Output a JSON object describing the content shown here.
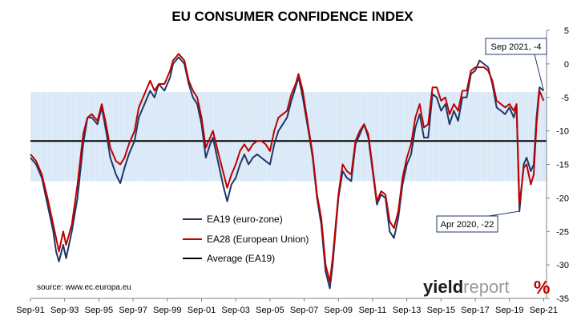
{
  "chart_data": {
    "type": "line",
    "title": "EU CONSUMER CONFIDENCE INDEX",
    "xlabel": "",
    "ylabel": "",
    "ylim": [
      -35,
      5
    ],
    "x_range": [
      "1991-09",
      "2021-11"
    ],
    "y_ticks": [
      5,
      0,
      -5,
      -10,
      -15,
      -20,
      -25,
      -30,
      -35
    ],
    "x_ticks": [
      "Sep-91",
      "Sep-93",
      "Sep-95",
      "Sep-97",
      "Sep-99",
      "Sep-01",
      "Sep-03",
      "Sep-05",
      "Sep-07",
      "Sep-09",
      "Sep-11",
      "Sep-13",
      "Sep-15",
      "Sep-17",
      "Sep-19",
      "Sep-21"
    ],
    "band": {
      "from": -17.5,
      "to": -4.2,
      "color": "#c8def2"
    },
    "average": {
      "name": "Average (EA19)",
      "value": -11.5,
      "color": "#000000"
    },
    "legend_position": "bottom-center",
    "grid": false,
    "series": [
      {
        "name": "EA19 (euro-zone)",
        "color": "#1f3864",
        "points": [
          [
            "1991-09",
            -14
          ],
          [
            "1992-01",
            -15
          ],
          [
            "1992-05",
            -17
          ],
          [
            "1992-09",
            -21
          ],
          [
            "1993-01",
            -25
          ],
          [
            "1993-03",
            -28
          ],
          [
            "1993-05",
            -29.5
          ],
          [
            "1993-08",
            -27
          ],
          [
            "1993-10",
            -29
          ],
          [
            "1994-02",
            -25
          ],
          [
            "1994-06",
            -20
          ],
          [
            "1994-10",
            -12
          ],
          [
            "1995-01",
            -8
          ],
          [
            "1995-04",
            -8
          ],
          [
            "1995-08",
            -9
          ],
          [
            "1995-11",
            -6.5
          ],
          [
            "1996-02",
            -10
          ],
          [
            "1996-05",
            -14
          ],
          [
            "1996-09",
            -16.5
          ],
          [
            "1996-12",
            -17.8
          ],
          [
            "1997-03",
            -15.5
          ],
          [
            "1997-06",
            -13.5
          ],
          [
            "1997-10",
            -11.5
          ],
          [
            "1998-01",
            -8
          ],
          [
            "1998-05",
            -6
          ],
          [
            "1998-09",
            -4
          ],
          [
            "1998-12",
            -5
          ],
          [
            "1999-03",
            -3
          ],
          [
            "1999-07",
            -4
          ],
          [
            "1999-11",
            -2
          ],
          [
            "2000-01",
            0
          ],
          [
            "2000-05",
            1
          ],
          [
            "2000-09",
            0
          ],
          [
            "2000-12",
            -3
          ],
          [
            "2001-03",
            -5
          ],
          [
            "2001-06",
            -6
          ],
          [
            "2001-09",
            -9
          ],
          [
            "2001-12",
            -14
          ],
          [
            "2002-03",
            -12
          ],
          [
            "2002-05",
            -11
          ],
          [
            "2002-09",
            -15
          ],
          [
            "2002-12",
            -18
          ],
          [
            "2003-03",
            -20.5
          ],
          [
            "2003-06",
            -18
          ],
          [
            "2003-09",
            -17
          ],
          [
            "2003-12",
            -15
          ],
          [
            "2004-03",
            -13.5
          ],
          [
            "2004-06",
            -15
          ],
          [
            "2004-09",
            -14
          ],
          [
            "2004-12",
            -13.5
          ],
          [
            "2005-03",
            -14
          ],
          [
            "2005-06",
            -14.5
          ],
          [
            "2005-09",
            -15
          ],
          [
            "2005-12",
            -12
          ],
          [
            "2006-03",
            -10
          ],
          [
            "2006-06",
            -9
          ],
          [
            "2006-09",
            -8
          ],
          [
            "2006-12",
            -5.5
          ],
          [
            "2007-03",
            -3.5
          ],
          [
            "2007-05",
            -2
          ],
          [
            "2007-08",
            -5
          ],
          [
            "2007-12",
            -10
          ],
          [
            "2008-03",
            -14
          ],
          [
            "2008-06",
            -20
          ],
          [
            "2008-09",
            -24
          ],
          [
            "2008-12",
            -31
          ],
          [
            "2009-03",
            -33.5
          ],
          [
            "2009-05",
            -30
          ],
          [
            "2009-09",
            -20
          ],
          [
            "2009-12",
            -16
          ],
          [
            "2010-03",
            -17
          ],
          [
            "2010-06",
            -17.5
          ],
          [
            "2010-09",
            -12
          ],
          [
            "2010-12",
            -10.5
          ],
          [
            "2011-03",
            -9
          ],
          [
            "2011-06",
            -11
          ],
          [
            "2011-09",
            -16
          ],
          [
            "2011-12",
            -21
          ],
          [
            "2012-03",
            -19.5
          ],
          [
            "2012-06",
            -20
          ],
          [
            "2012-09",
            -25
          ],
          [
            "2012-12",
            -26
          ],
          [
            "2013-03",
            -23
          ],
          [
            "2013-06",
            -18
          ],
          [
            "2013-09",
            -15
          ],
          [
            "2013-12",
            -13.5
          ],
          [
            "2014-03",
            -9.5
          ],
          [
            "2014-06",
            -7.5
          ],
          [
            "2014-09",
            -11
          ],
          [
            "2014-12",
            -11
          ],
          [
            "2015-03",
            -4.5
          ],
          [
            "2015-06",
            -5
          ],
          [
            "2015-09",
            -7
          ],
          [
            "2015-12",
            -6
          ],
          [
            "2016-03",
            -9
          ],
          [
            "2016-06",
            -7
          ],
          [
            "2016-09",
            -8.5
          ],
          [
            "2016-12",
            -5
          ],
          [
            "2017-03",
            -5
          ],
          [
            "2017-06",
            -1.5
          ],
          [
            "2017-09",
            -1
          ],
          [
            "2017-12",
            0.5
          ],
          [
            "2018-03",
            0
          ],
          [
            "2018-06",
            -0.5
          ],
          [
            "2018-09",
            -3
          ],
          [
            "2018-12",
            -6.5
          ],
          [
            "2019-03",
            -7
          ],
          [
            "2019-06",
            -7.5
          ],
          [
            "2019-09",
            -6.5
          ],
          [
            "2019-12",
            -8
          ],
          [
            "2020-02",
            -6.5
          ],
          [
            "2020-04",
            -22
          ],
          [
            "2020-07",
            -15
          ],
          [
            "2020-09",
            -14
          ],
          [
            "2020-12",
            -16
          ],
          [
            "2021-02",
            -15
          ],
          [
            "2021-04",
            -8
          ],
          [
            "2021-06",
            -3.5
          ],
          [
            "2021-09",
            -4
          ]
        ]
      },
      {
        "name": "EA28 (European Union)",
        "color": "#c00000",
        "points": [
          [
            "1991-09",
            -13.5
          ],
          [
            "1992-01",
            -14.5
          ],
          [
            "1992-05",
            -16.5
          ],
          [
            "1992-09",
            -20
          ],
          [
            "1993-01",
            -24
          ],
          [
            "1993-03",
            -26
          ],
          [
            "1993-05",
            -28
          ],
          [
            "1993-08",
            -25
          ],
          [
            "1993-10",
            -27
          ],
          [
            "1994-02",
            -24
          ],
          [
            "1994-06",
            -18
          ],
          [
            "1994-10",
            -10.5
          ],
          [
            "1995-01",
            -8
          ],
          [
            "1995-04",
            -7.5
          ],
          [
            "1995-08",
            -8.5
          ],
          [
            "1995-11",
            -6
          ],
          [
            "1996-02",
            -9
          ],
          [
            "1996-05",
            -12.5
          ],
          [
            "1996-09",
            -14.5
          ],
          [
            "1996-12",
            -15
          ],
          [
            "1997-03",
            -14
          ],
          [
            "1997-06",
            -12
          ],
          [
            "1997-10",
            -10
          ],
          [
            "1998-01",
            -6.5
          ],
          [
            "1998-05",
            -4.5
          ],
          [
            "1998-09",
            -2.5
          ],
          [
            "1998-12",
            -4
          ],
          [
            "1999-03",
            -3
          ],
          [
            "1999-07",
            -3
          ],
          [
            "1999-11",
            -1
          ],
          [
            "2000-01",
            0.5
          ],
          [
            "2000-05",
            1.5
          ],
          [
            "2000-09",
            0.5
          ],
          [
            "2000-12",
            -2.5
          ],
          [
            "2001-03",
            -4
          ],
          [
            "2001-06",
            -5
          ],
          [
            "2001-09",
            -8
          ],
          [
            "2001-12",
            -12.5
          ],
          [
            "2002-03",
            -11
          ],
          [
            "2002-05",
            -10
          ],
          [
            "2002-09",
            -13.5
          ],
          [
            "2002-12",
            -16
          ],
          [
            "2003-03",
            -18.5
          ],
          [
            "2003-06",
            -16.5
          ],
          [
            "2003-09",
            -15
          ],
          [
            "2003-12",
            -13
          ],
          [
            "2004-03",
            -12
          ],
          [
            "2004-06",
            -13
          ],
          [
            "2004-09",
            -12
          ],
          [
            "2004-12",
            -11.5
          ],
          [
            "2005-03",
            -11.5
          ],
          [
            "2005-06",
            -12
          ],
          [
            "2005-09",
            -13
          ],
          [
            "2005-12",
            -10
          ],
          [
            "2006-03",
            -8
          ],
          [
            "2006-06",
            -7.5
          ],
          [
            "2006-09",
            -7
          ],
          [
            "2006-12",
            -4.5
          ],
          [
            "2007-03",
            -3
          ],
          [
            "2007-05",
            -1.5
          ],
          [
            "2007-08",
            -4
          ],
          [
            "2007-12",
            -9.5
          ],
          [
            "2008-03",
            -13.5
          ],
          [
            "2008-06",
            -19.5
          ],
          [
            "2008-09",
            -23
          ],
          [
            "2008-12",
            -30
          ],
          [
            "2009-03",
            -32.5
          ],
          [
            "2009-05",
            -29
          ],
          [
            "2009-09",
            -19.5
          ],
          [
            "2009-12",
            -15
          ],
          [
            "2010-03",
            -16
          ],
          [
            "2010-06",
            -16.5
          ],
          [
            "2010-09",
            -11.5
          ],
          [
            "2010-12",
            -10
          ],
          [
            "2011-03",
            -9
          ],
          [
            "2011-06",
            -10.5
          ],
          [
            "2011-09",
            -15.5
          ],
          [
            "2011-12",
            -20.5
          ],
          [
            "2012-03",
            -19
          ],
          [
            "2012-06",
            -19.5
          ],
          [
            "2012-09",
            -23.5
          ],
          [
            "2012-12",
            -24.5
          ],
          [
            "2013-03",
            -22
          ],
          [
            "2013-06",
            -17
          ],
          [
            "2013-09",
            -14
          ],
          [
            "2013-12",
            -12
          ],
          [
            "2014-03",
            -8
          ],
          [
            "2014-06",
            -6
          ],
          [
            "2014-09",
            -9.5
          ],
          [
            "2014-12",
            -9
          ],
          [
            "2015-03",
            -3.5
          ],
          [
            "2015-06",
            -3.5
          ],
          [
            "2015-09",
            -5.5
          ],
          [
            "2015-12",
            -5
          ],
          [
            "2016-03",
            -7.5
          ],
          [
            "2016-06",
            -6
          ],
          [
            "2016-09",
            -7
          ],
          [
            "2016-12",
            -4
          ],
          [
            "2017-03",
            -4
          ],
          [
            "2017-06",
            -1
          ],
          [
            "2017-09",
            -0.5
          ],
          [
            "2017-12",
            -0.5
          ],
          [
            "2018-03",
            -0.5
          ],
          [
            "2018-06",
            -1
          ],
          [
            "2018-09",
            -2.5
          ],
          [
            "2018-12",
            -5.5
          ],
          [
            "2019-03",
            -6
          ],
          [
            "2019-06",
            -6.5
          ],
          [
            "2019-09",
            -6
          ],
          [
            "2019-12",
            -7
          ],
          [
            "2020-02",
            -6
          ],
          [
            "2020-04",
            -21
          ],
          [
            "2020-07",
            -15.5
          ],
          [
            "2020-09",
            -15
          ],
          [
            "2020-12",
            -18
          ],
          [
            "2021-02",
            -16.5
          ],
          [
            "2021-04",
            -9
          ],
          [
            "2021-06",
            -4
          ],
          [
            "2021-09",
            -5.5
          ]
        ]
      }
    ],
    "annotations": [
      {
        "text": "Sep 2021, -4",
        "at": [
          "2021-09",
          -4
        ]
      },
      {
        "text": "Apr 2020, -22",
        "at": [
          "2020-04",
          -22
        ]
      }
    ],
    "source": "source: www.ec.europa.eu",
    "brand": {
      "text_a": "yield",
      "text_b": "report",
      "symbol": "%"
    }
  }
}
